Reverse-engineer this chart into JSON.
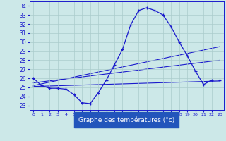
{
  "xlabel": "Graphe des températures (°c)",
  "background_color": "#cce8e8",
  "plot_bg_color": "#cce8e8",
  "line_color": "#1a1acc",
  "grid_color": "#aacccc",
  "ylim": [
    22.5,
    34.5
  ],
  "xlim": [
    -0.5,
    23.5
  ],
  "yticks": [
    23,
    24,
    25,
    26,
    27,
    28,
    29,
    30,
    31,
    32,
    33,
    34
  ],
  "xticks": [
    0,
    1,
    2,
    3,
    4,
    5,
    6,
    7,
    8,
    9,
    10,
    11,
    12,
    13,
    14,
    15,
    16,
    17,
    18,
    19,
    20,
    21,
    22,
    23
  ],
  "line1_x": [
    0,
    1,
    2,
    3,
    4,
    5,
    6,
    7,
    8,
    9,
    10,
    11,
    12,
    13,
    14,
    15,
    16,
    17,
    18,
    19,
    20,
    21,
    22,
    23
  ],
  "line1_y": [
    26.0,
    25.2,
    24.9,
    24.9,
    24.8,
    24.2,
    23.3,
    23.2,
    24.4,
    25.8,
    27.5,
    29.2,
    31.9,
    33.5,
    33.8,
    33.5,
    33.0,
    31.7,
    30.0,
    28.5,
    26.8,
    25.3,
    25.8,
    25.8
  ],
  "line2_x": [
    0,
    23
  ],
  "line2_y": [
    25.2,
    29.5
  ],
  "line3_x": [
    0,
    23
  ],
  "line3_y": [
    25.5,
    28.0
  ],
  "line4_x": [
    0,
    23
  ],
  "line4_y": [
    25.1,
    25.7
  ],
  "xlabel_color": "#1a1acc",
  "xlabel_bg": "#2255cc"
}
